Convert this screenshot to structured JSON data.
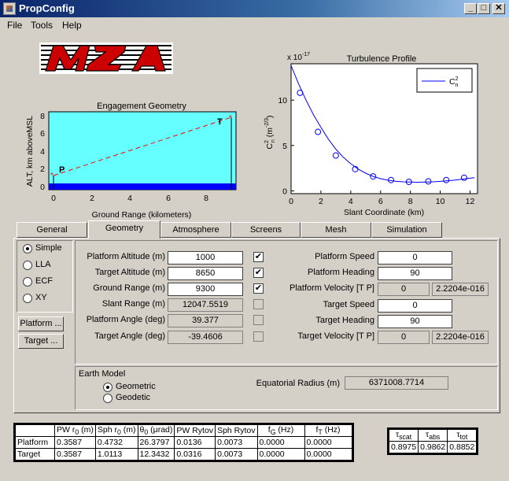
{
  "window": {
    "title": "PropConfig",
    "minimize": "_",
    "maximize": "□",
    "close": "✕"
  },
  "menu": [
    {
      "label": "File"
    },
    {
      "label": "Tools"
    },
    {
      "label": "Help"
    }
  ],
  "engagement_plot": {
    "title": "Engagement Geometry",
    "xlabel": "Ground Range (kilometers)",
    "ylabel": "ALT, km aboveMSL",
    "xticks": [
      "0",
      "2",
      "4",
      "6",
      "8"
    ],
    "yticks": [
      "0",
      "2",
      "4",
      "6",
      "8"
    ],
    "platform_marker": "P",
    "target_marker": "T",
    "colors": {
      "sky": "#66ffff",
      "ground": "#0000ff",
      "line": "#ff0000"
    }
  },
  "chart_data": {
    "type": "line",
    "title": "Turbulence Profile",
    "xlabel": "Slant Coordinate (km)",
    "ylabel": "C_n^2 (m^-2/3)",
    "y_exponent": "x 10^-17",
    "legend": "C_n^2",
    "legend_position": "top-right",
    "xlim": [
      0,
      12.5
    ],
    "ylim": [
      -0.3,
      14
    ],
    "xticks": [
      "0",
      "2",
      "4",
      "6",
      "8",
      "10",
      "12"
    ],
    "yticks": [
      "0",
      "5",
      "10"
    ],
    "series": [
      {
        "curve": [
          [
            0,
            13.8
          ],
          [
            0.5,
            11.8
          ],
          [
            1,
            10.0
          ],
          [
            1.5,
            8.4
          ],
          [
            2,
            7.0
          ],
          [
            2.5,
            5.7
          ],
          [
            3,
            4.6
          ],
          [
            3.5,
            3.7
          ],
          [
            4,
            3.0
          ],
          [
            4.5,
            2.4
          ],
          [
            5,
            1.95
          ],
          [
            5.5,
            1.6
          ],
          [
            6,
            1.35
          ],
          [
            6.5,
            1.18
          ],
          [
            7,
            1.07
          ],
          [
            7.5,
            1.0
          ],
          [
            8,
            0.97
          ],
          [
            8.5,
            0.96
          ],
          [
            9,
            0.97
          ],
          [
            9.5,
            1.0
          ],
          [
            10,
            1.05
          ],
          [
            10.5,
            1.12
          ],
          [
            11,
            1.2
          ],
          [
            11.5,
            1.3
          ],
          [
            12,
            1.4
          ],
          [
            12.3,
            1.45
          ]
        ],
        "markers": [
          [
            0.6,
            10.8
          ],
          [
            1.8,
            6.5
          ],
          [
            3.0,
            3.9
          ],
          [
            4.3,
            2.4
          ],
          [
            5.5,
            1.6
          ],
          [
            6.7,
            1.2
          ],
          [
            7.9,
            1.0
          ],
          [
            9.2,
            1.05
          ],
          [
            10.4,
            1.2
          ],
          [
            11.6,
            1.45
          ]
        ]
      }
    ]
  },
  "tabs": [
    {
      "label": "General"
    },
    {
      "label": "Geometry"
    },
    {
      "label": "Atmosphere"
    },
    {
      "label": "Screens"
    },
    {
      "label": "Mesh"
    },
    {
      "label": "Simulation"
    }
  ],
  "coord_modes": [
    {
      "label": "Simple",
      "selected": true
    },
    {
      "label": "LLA"
    },
    {
      "label": "ECF"
    },
    {
      "label": "XY"
    }
  ],
  "buttons": {
    "platform": "Platform ...",
    "target": "Target ..."
  },
  "geometry_left": [
    {
      "label": "Platform Altitude (m)",
      "value": "1000",
      "checked": "✔"
    },
    {
      "label": "Target Altitude (m)",
      "value": "8650",
      "checked": "✔"
    },
    {
      "label": "Ground Range (m)",
      "value": "9300",
      "checked": "✔"
    },
    {
      "label": "Slant Range (m)",
      "value": "12047.5519",
      "checked": ""
    },
    {
      "label": "Platform Angle (deg)",
      "value": "39.377",
      "checked": ""
    },
    {
      "label": "Target Angle (deg)",
      "value": "-39.4606",
      "checked": ""
    }
  ],
  "geometry_right": [
    {
      "label": "Platform Speed",
      "value": "0"
    },
    {
      "label": "Platform Heading",
      "value": "90"
    },
    {
      "label": "Platform Velocity [T P]",
      "value": "0",
      "value2": "2.2204e-016"
    },
    {
      "label": "Target Speed",
      "value": "0"
    },
    {
      "label": "Target Heading",
      "value": "90"
    },
    {
      "label": "Target Velocity [T P]",
      "value": "0",
      "value2": "2.2204e-016"
    }
  ],
  "earth_model": {
    "title": "Earth Model",
    "options": [
      {
        "label": "Geometric",
        "selected": true
      },
      {
        "label": "Geodetic"
      }
    ],
    "radius_label": "Equatorial Radius (m)",
    "radius_value": "6371008.7714"
  },
  "results_table": {
    "headers": [
      "",
      "PW r0 (m)",
      "Sph r0 (m)",
      "θ0 (μrad)",
      "PW Rytov",
      "Sph Rytov",
      "fG (Hz)",
      "fT (Hz)"
    ],
    "rows": [
      [
        "Platform",
        "0.3587",
        "0.4732",
        "26.3797",
        "0.0136",
        "0.0073",
        "0.0000",
        "0.0000"
      ],
      [
        "Target",
        "0.3587",
        "1.0113",
        "12.3432",
        "0.0316",
        "0.0073",
        "0.0000",
        "0.0000"
      ]
    ]
  },
  "tau_table": {
    "headers": [
      "τscat",
      "τabs",
      "τtot"
    ],
    "values": [
      "0.8975",
      "0.9862",
      "0.8852"
    ]
  }
}
